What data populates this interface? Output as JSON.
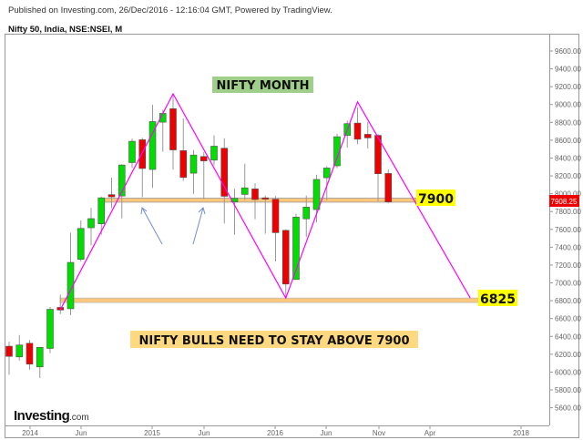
{
  "header": {
    "published": "Published on Investing.com, 26/Dec/2016 - 12:16:04 GMT, Powered by TradingView.",
    "symbol": "Nifty 50, India, NSE:NSEI, M"
  },
  "logo": {
    "text": "Investing",
    "suffix": ".com"
  },
  "colors": {
    "up": "#00dd00",
    "down": "#ee0000",
    "zigzag": "#ff00ff",
    "band": "#ffc77a",
    "label_bg": "#ffff00",
    "title_bg": "#9fcf8a",
    "note_bg": "#ffd980",
    "arrow": "#6f8fcf"
  },
  "chart_data": {
    "type": "candlestick",
    "interval": "monthly",
    "title": "NIFTY MONTH",
    "annotation": "NIFTY BULLS NEED TO STAY ABOVE 7900",
    "ylim": [
      5400,
      9800
    ],
    "yticks": [
      5600,
      5800,
      6000,
      6200,
      6400,
      6600,
      6800,
      7000,
      7200,
      7400,
      7600,
      7800,
      8000,
      8200,
      8400,
      8600,
      8800,
      9000,
      9200,
      9400,
      9600
    ],
    "xticks": [
      "2014",
      "Jun",
      "2015",
      "Jun",
      "2016",
      "Jun",
      "Nov",
      "Apr",
      "2018"
    ],
    "last_price": "7908.25",
    "levels": [
      {
        "value": 7900,
        "label": "7900"
      },
      {
        "value": 6825,
        "label": "6825"
      }
    ],
    "zigzag": [
      [
        "2014-04",
        6700
      ],
      [
        "2015-03",
        9120
      ],
      [
        "2016-02",
        6830
      ],
      [
        "2016-09",
        9030
      ],
      [
        "2017-08",
        6830
      ]
    ],
    "candles": [
      {
        "d": "2013-11",
        "o": 6290,
        "h": 6340,
        "l": 5970,
        "c": 6176
      },
      {
        "d": "2013-12",
        "o": 6170,
        "h": 6415,
        "l": 6130,
        "c": 6304
      },
      {
        "d": "2014-01",
        "o": 6323,
        "h": 6358,
        "l": 6027,
        "c": 6089
      },
      {
        "d": "2014-02",
        "o": 6058,
        "h": 6282,
        "l": 5933,
        "c": 6277
      },
      {
        "d": "2014-03",
        "o": 6265,
        "h": 6730,
        "l": 6212,
        "c": 6704
      },
      {
        "d": "2014-04",
        "o": 6725,
        "h": 6869,
        "l": 6650,
        "c": 6696
      },
      {
        "d": "2014-05",
        "o": 6710,
        "h": 7563,
        "l": 6638,
        "c": 7230
      },
      {
        "d": "2014-06",
        "o": 7264,
        "h": 7700,
        "l": 7240,
        "c": 7611
      },
      {
        "d": "2014-07",
        "o": 7618,
        "h": 7840,
        "l": 7422,
        "c": 7721
      },
      {
        "d": "2014-08",
        "o": 7662,
        "h": 7968,
        "l": 7540,
        "c": 7954
      },
      {
        "d": "2014-09",
        "o": 7990,
        "h": 8180,
        "l": 7841,
        "c": 7965
      },
      {
        "d": "2014-10",
        "o": 7974,
        "h": 8330,
        "l": 7723,
        "c": 8322
      },
      {
        "d": "2014-11",
        "o": 8349,
        "h": 8617,
        "l": 8290,
        "c": 8588
      },
      {
        "d": "2014-12",
        "o": 8605,
        "h": 8627,
        "l": 7961,
        "c": 8283
      },
      {
        "d": "2015-01",
        "o": 8272,
        "h": 8996,
        "l": 8065,
        "c": 8809
      },
      {
        "d": "2015-02",
        "o": 8802,
        "h": 8941,
        "l": 8470,
        "c": 8901
      },
      {
        "d": "2015-03",
        "o": 8953,
        "h": 9119,
        "l": 8269,
        "c": 8491
      },
      {
        "d": "2015-04",
        "o": 8483,
        "h": 8844,
        "l": 8144,
        "c": 8182
      },
      {
        "d": "2015-05",
        "o": 8230,
        "h": 8490,
        "l": 7997,
        "c": 8434
      },
      {
        "d": "2015-06",
        "o": 8417,
        "h": 8467,
        "l": 7940,
        "c": 8368
      },
      {
        "d": "2015-07",
        "o": 8376,
        "h": 8655,
        "l": 8315,
        "c": 8533
      },
      {
        "d": "2015-08",
        "o": 8510,
        "h": 8622,
        "l": 7667,
        "c": 7971
      },
      {
        "d": "2015-09",
        "o": 7908,
        "h": 8055,
        "l": 7540,
        "c": 7949
      },
      {
        "d": "2015-10",
        "o": 7992,
        "h": 8336,
        "l": 7930,
        "c": 8066
      },
      {
        "d": "2015-11",
        "o": 8054,
        "h": 8116,
        "l": 7714,
        "c": 7935
      },
      {
        "d": "2015-12",
        "o": 7954,
        "h": 7979,
        "l": 7551,
        "c": 7946
      },
      {
        "d": "2016-01",
        "o": 7938,
        "h": 7973,
        "l": 7241,
        "c": 7563
      },
      {
        "d": "2016-02",
        "o": 7589,
        "h": 7600,
        "l": 6826,
        "c": 6987
      },
      {
        "d": "2016-03",
        "o": 7038,
        "h": 7777,
        "l": 7036,
        "c": 7738
      },
      {
        "d": "2016-04",
        "o": 7718,
        "h": 7979,
        "l": 7517,
        "c": 7850
      },
      {
        "d": "2016-05",
        "o": 7822,
        "h": 8213,
        "l": 7679,
        "c": 8160
      },
      {
        "d": "2016-06",
        "o": 8179,
        "h": 8308,
        "l": 7927,
        "c": 8288
      },
      {
        "d": "2016-07",
        "o": 8313,
        "h": 8674,
        "l": 8288,
        "c": 8639
      },
      {
        "d": "2016-08",
        "o": 8654,
        "h": 8819,
        "l": 8518,
        "c": 8786
      },
      {
        "d": "2016-09",
        "o": 8792,
        "h": 8968,
        "l": 8555,
        "c": 8611
      },
      {
        "d": "2016-10",
        "o": 8666,
        "h": 8806,
        "l": 8506,
        "c": 8626
      },
      {
        "d": "2016-11",
        "o": 8654,
        "h": 8669,
        "l": 7916,
        "c": 8224
      },
      {
        "d": "2016-12",
        "o": 8227,
        "h": 8274,
        "l": 7893,
        "c": 7908
      }
    ]
  }
}
